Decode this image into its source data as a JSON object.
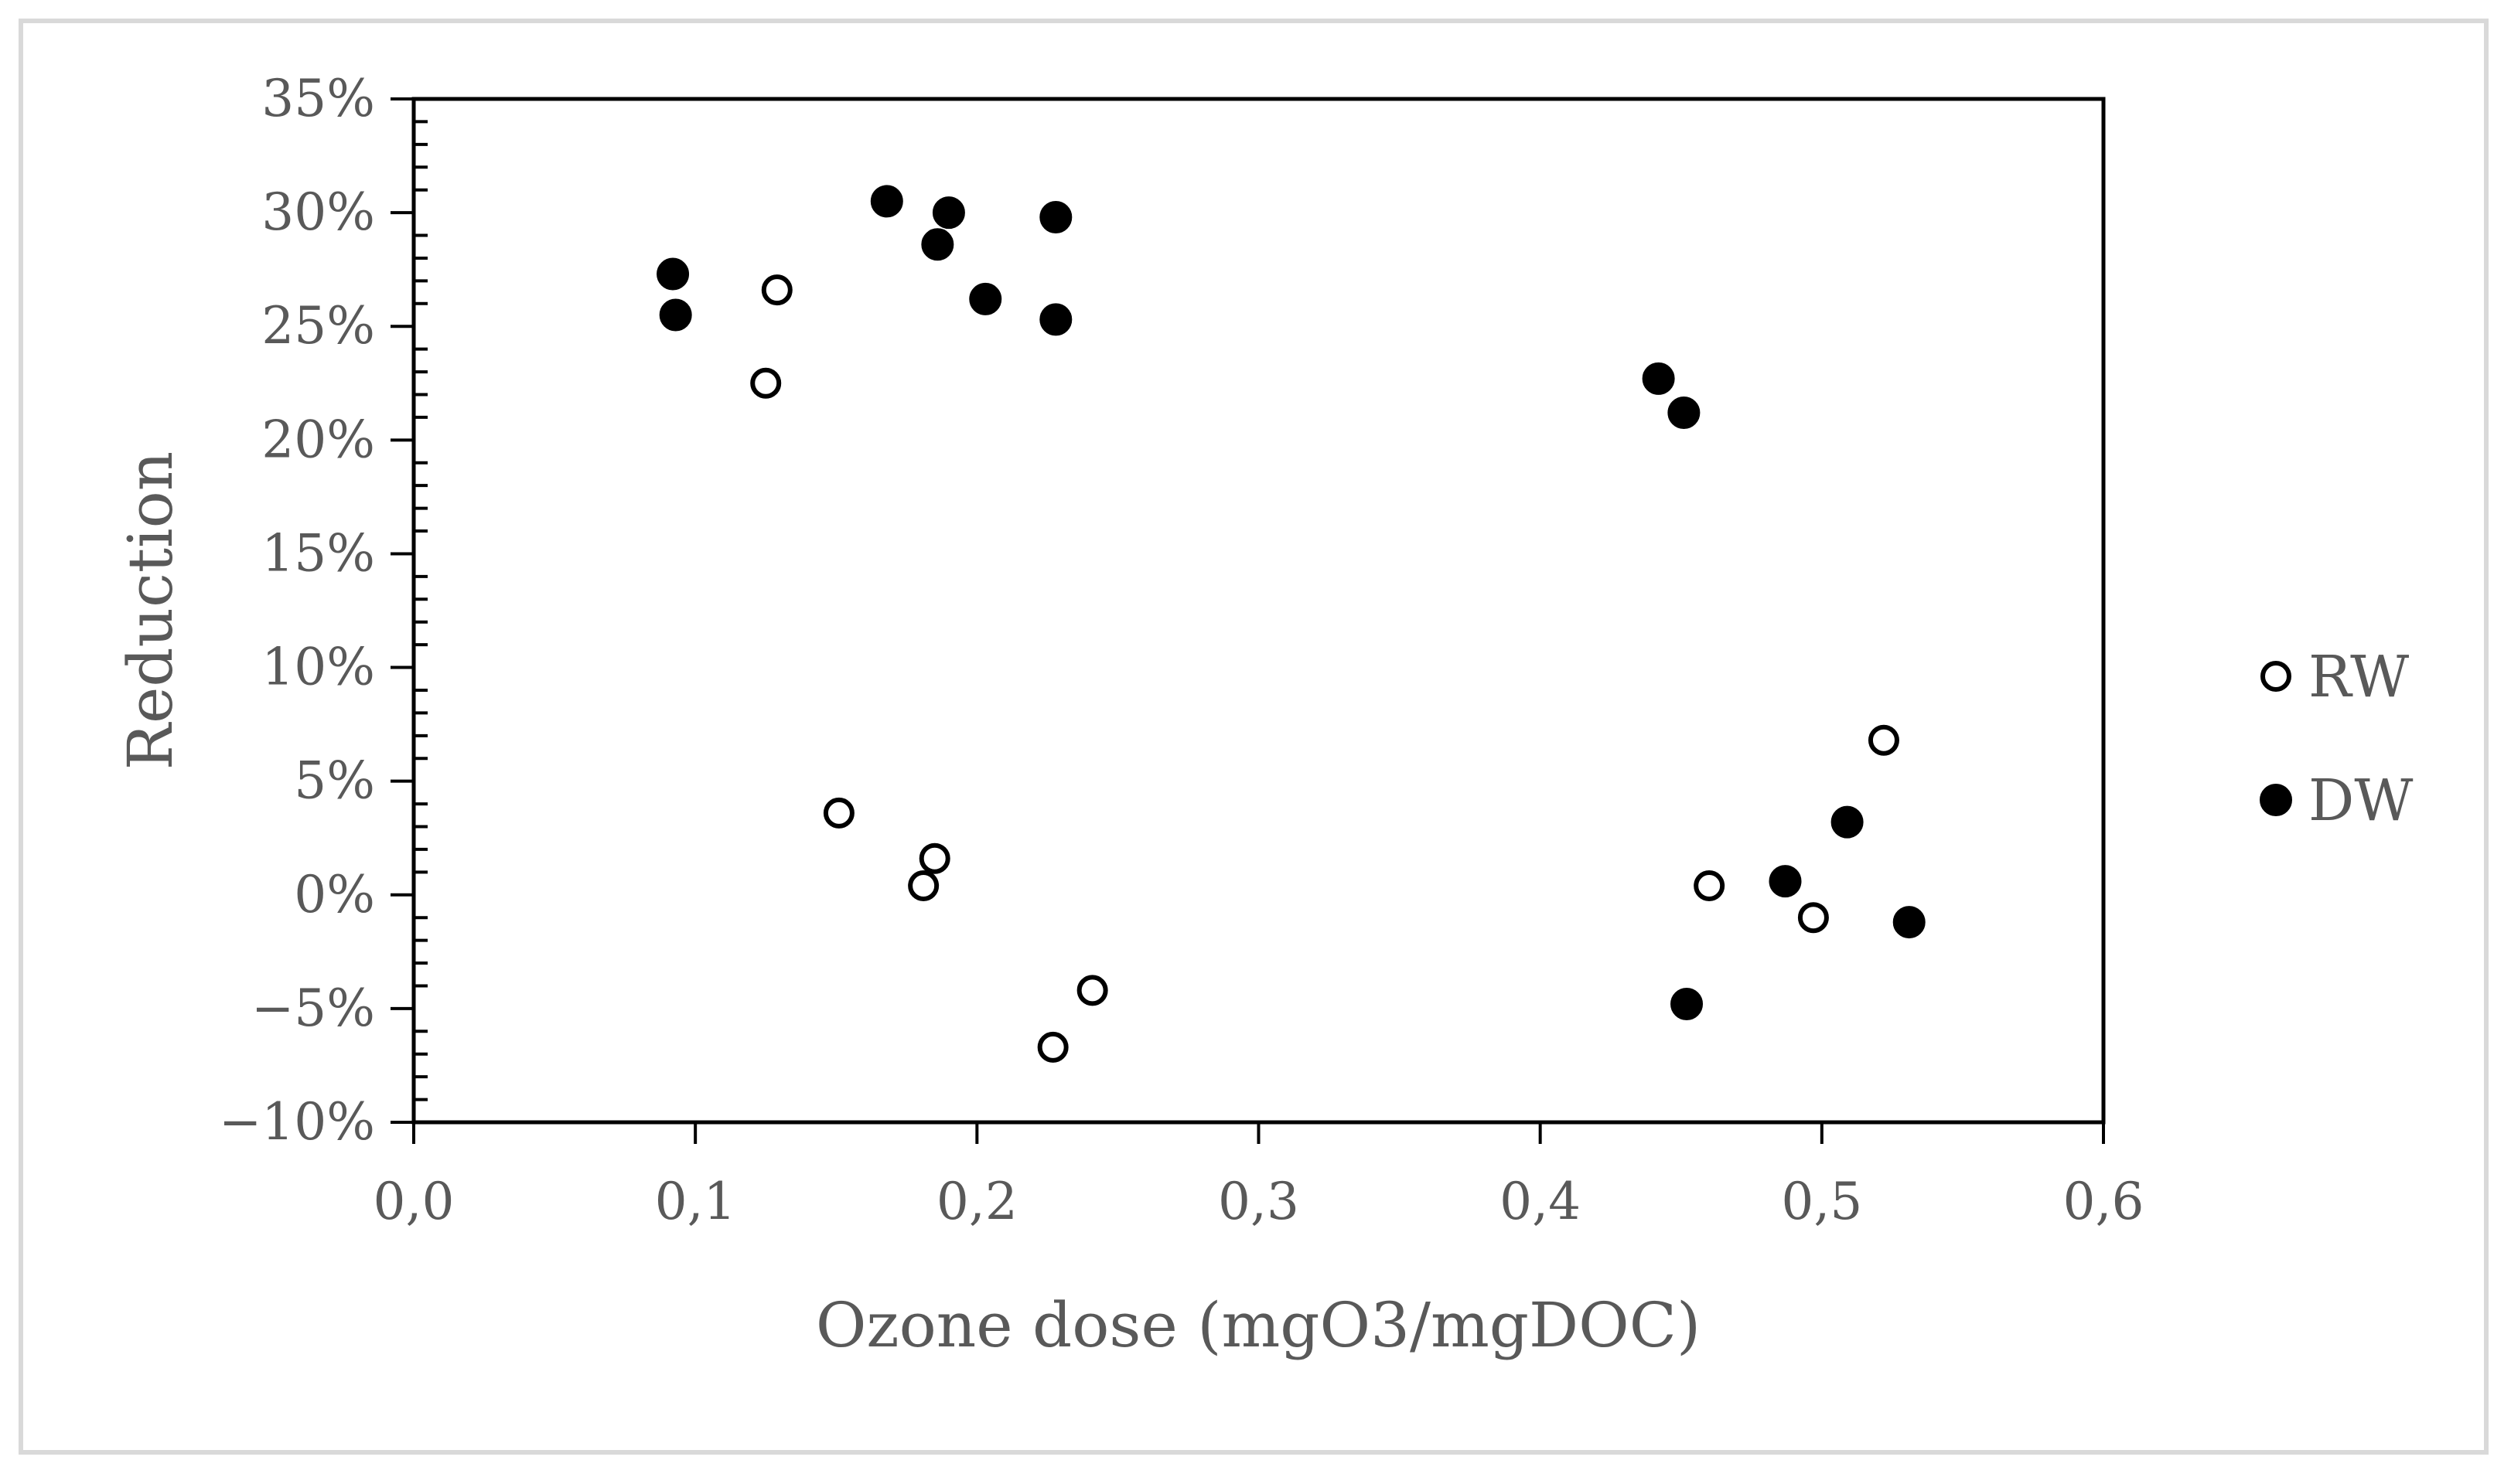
{
  "chart_data": {
    "type": "scatter",
    "xlabel": "Ozone dose (mgO3/mgDOC)",
    "ylabel": "Reduction",
    "xlim": [
      0,
      0.6
    ],
    "ylim": [
      -10,
      35
    ],
    "x_ticks": [
      "0,0",
      "0,1",
      "0,2",
      "0,3",
      "0,4",
      "0,5",
      "0,6"
    ],
    "y_ticks": [
      "−10%",
      "−5%",
      "0%",
      "5%",
      "10%",
      "15%",
      "20%",
      "25%",
      "30%",
      "35%"
    ],
    "grid": false,
    "legend_position": "right",
    "series": [
      {
        "name": "RW",
        "marker": "open-circle",
        "color": "#000000",
        "points": [
          [
            0.129,
            26.6
          ],
          [
            0.125,
            22.5
          ],
          [
            0.151,
            3.6
          ],
          [
            0.185,
            1.6
          ],
          [
            0.181,
            0.4
          ],
          [
            0.241,
            -4.2
          ],
          [
            0.227,
            -6.7
          ],
          [
            0.46,
            0.4
          ],
          [
            0.497,
            -1.0
          ],
          [
            0.522,
            6.8
          ]
        ]
      },
      {
        "name": "DW",
        "marker": "filled-circle",
        "color": "#000000",
        "points": [
          [
            0.092,
            27.3
          ],
          [
            0.093,
            25.5
          ],
          [
            0.168,
            30.5
          ],
          [
            0.19,
            30.0
          ],
          [
            0.186,
            28.6
          ],
          [
            0.203,
            26.2
          ],
          [
            0.228,
            29.8
          ],
          [
            0.228,
            25.3
          ],
          [
            0.442,
            22.7
          ],
          [
            0.451,
            21.2
          ],
          [
            0.487,
            0.6
          ],
          [
            0.509,
            3.2
          ],
          [
            0.531,
            -1.2
          ],
          [
            0.452,
            -4.8
          ]
        ]
      }
    ]
  }
}
